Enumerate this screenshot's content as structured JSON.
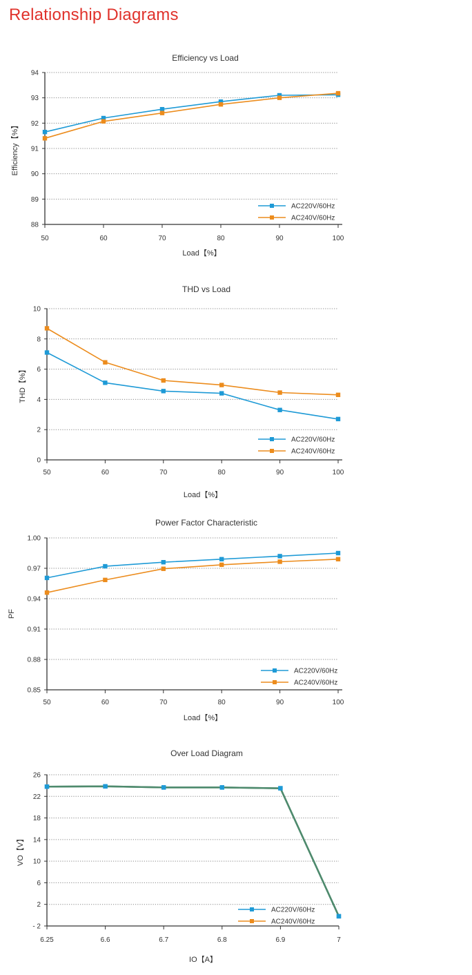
{
  "page": {
    "title": "Relationship Diagrams"
  },
  "colors": {
    "series1": "#1e9ad6",
    "series2": "#ec8c1d",
    "overload": "#4e8a6d",
    "grid": "#888888",
    "axis": "#333333"
  },
  "chart_data": [
    {
      "type": "line",
      "title": "Efficiency vs Load",
      "xlabel": "Load【%】",
      "ylabel": "Efficiency【%】",
      "categories": [
        "50",
        "60",
        "70",
        "80",
        "90",
        "100"
      ],
      "yticks": [
        "94",
        "93",
        "92",
        "91",
        "90",
        "89",
        "88"
      ],
      "ylim": [
        88,
        94
      ],
      "grid": true,
      "legend": "bottom-right",
      "series": [
        {
          "name": "AC220V/60Hz",
          "values": [
            91.65,
            92.2,
            92.55,
            92.85,
            93.1,
            93.12
          ]
        },
        {
          "name": "AC240V/60Hz",
          "values": [
            91.4,
            92.07,
            92.4,
            92.74,
            93.0,
            93.18
          ]
        }
      ]
    },
    {
      "type": "line",
      "title": "THD vs Load",
      "xlabel": "Load【%】",
      "ylabel": "THD【%】",
      "categories": [
        "50",
        "60",
        "70",
        "80",
        "90",
        "100"
      ],
      "yticks": [
        "10",
        "8",
        "6",
        "4",
        "2",
        "0"
      ],
      "ylim": [
        0,
        10
      ],
      "grid": true,
      "legend": "bottom-right",
      "series": [
        {
          "name": "AC220V/60Hz",
          "values": [
            7.1,
            5.1,
            4.55,
            4.4,
            3.3,
            2.7
          ]
        },
        {
          "name": "AC240V/60Hz",
          "values": [
            8.7,
            6.45,
            5.25,
            4.95,
            4.45,
            4.3
          ]
        }
      ]
    },
    {
      "type": "line",
      "title": "Power Factor Characteristic",
      "xlabel": "Load【%】",
      "ylabel": "PF",
      "categories": [
        "50",
        "60",
        "70",
        "80",
        "90",
        "100"
      ],
      "yticks": [
        "1.00",
        "0.97",
        "0.94",
        "0.91",
        "0.88",
        "0.85"
      ],
      "ylim": [
        0.85,
        1.0
      ],
      "grid": true,
      "legend": "bottom-right",
      "series": [
        {
          "name": "AC220V/60Hz",
          "values": [
            0.9605,
            0.972,
            0.976,
            0.979,
            0.982,
            0.985
          ]
        },
        {
          "name": "AC240V/60Hz",
          "values": [
            0.946,
            0.9585,
            0.9695,
            0.9735,
            0.9765,
            0.979
          ]
        }
      ]
    },
    {
      "type": "line",
      "title": "Over Load Diagram",
      "xlabel": "IO【A】",
      "ylabel": "VO【V】",
      "categories": [
        "6.25",
        "6.6",
        "6.7",
        "6.8",
        "6.9",
        "7"
      ],
      "yticks": [
        "26",
        "22",
        "18",
        "14",
        "10",
        "6",
        "2",
        "- 2"
      ],
      "ylim": [
        -2,
        26
      ],
      "grid": true,
      "legend": "bottom-right",
      "series": [
        {
          "name": "AC220V/60Hz",
          "values": [
            23.8,
            23.85,
            23.65,
            23.65,
            23.5,
            -0.2
          ]
        },
        {
          "name": "AC240V/60Hz",
          "values": [
            23.8,
            23.85,
            23.65,
            23.65,
            23.5,
            -0.2
          ]
        }
      ]
    }
  ]
}
